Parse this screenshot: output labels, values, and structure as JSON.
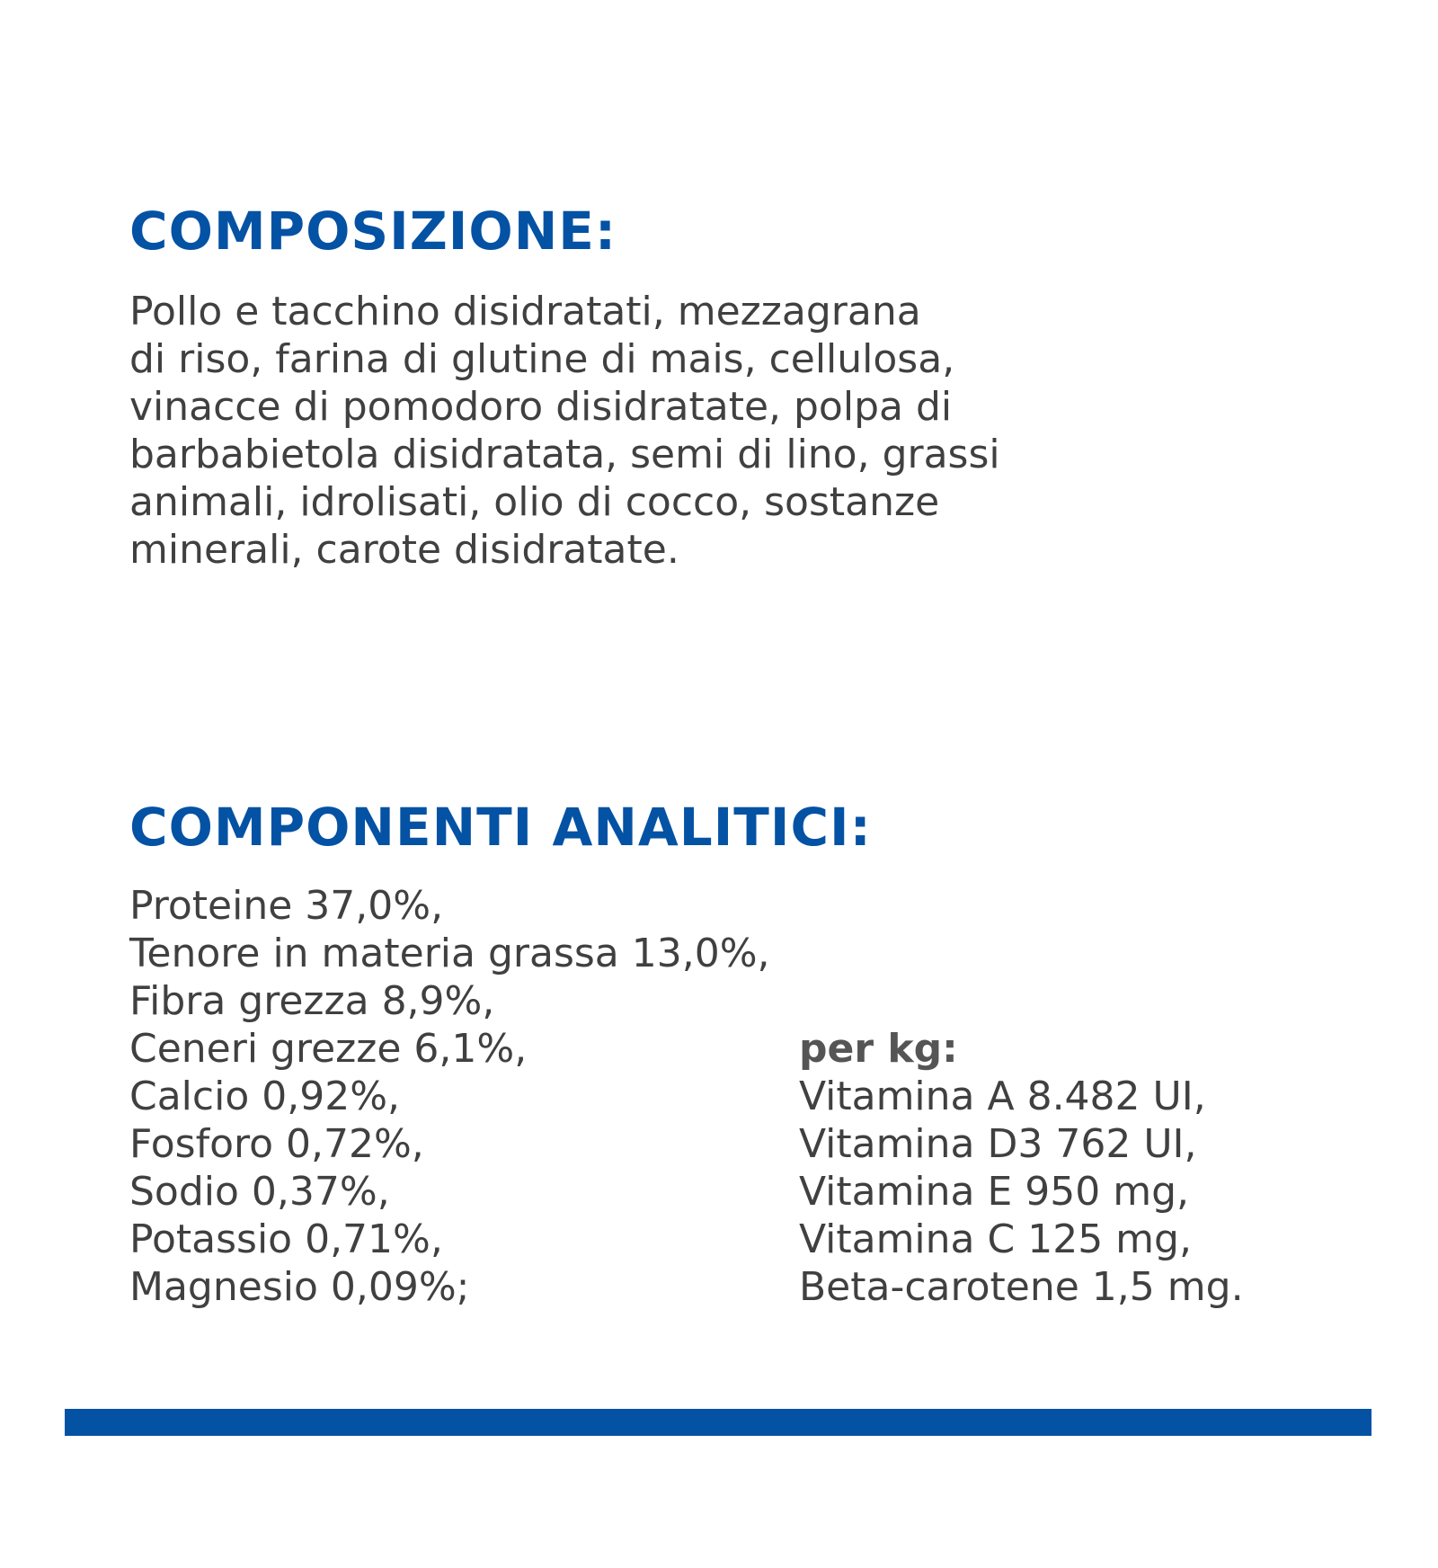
{
  "composition": {
    "heading": "COMPOSIZIONE:",
    "lines": [
      "Pollo e tacchino disidratati, mezzagrana",
      "di riso, farina di glutine di mais, cellulosa,",
      "vinacce di pomodoro disidratate, polpa di",
      "barbabietola disidratata, semi di lino, grassi",
      "animali, idrolisati, olio di cocco, sostanze",
      "minerali, carote disidratate."
    ]
  },
  "analytics": {
    "heading": "COMPONENTI ANALITICI:",
    "left": [
      "Proteine 37,0%,",
      "Tenore in materia grassa 13,0%,",
      "Fibra grezza 8,9%,",
      "Ceneri grezze 6,1%,",
      "Calcio 0,92%,",
      "Fosforo 0,72%,",
      "Sodio 0,37%,",
      "Potassio 0,71%,",
      "Magnesio 0,09%;"
    ],
    "right_label": "per kg:",
    "right": [
      "Vitamina A 8.482 UI,",
      "Vitamina D3 762 UI,",
      "Vitamina E 950 mg,",
      "Vitamina C 125 mg,",
      "Beta-carotene 1,5 mg."
    ]
  },
  "colors": {
    "accent": "#0452a4",
    "text": "#404040"
  }
}
